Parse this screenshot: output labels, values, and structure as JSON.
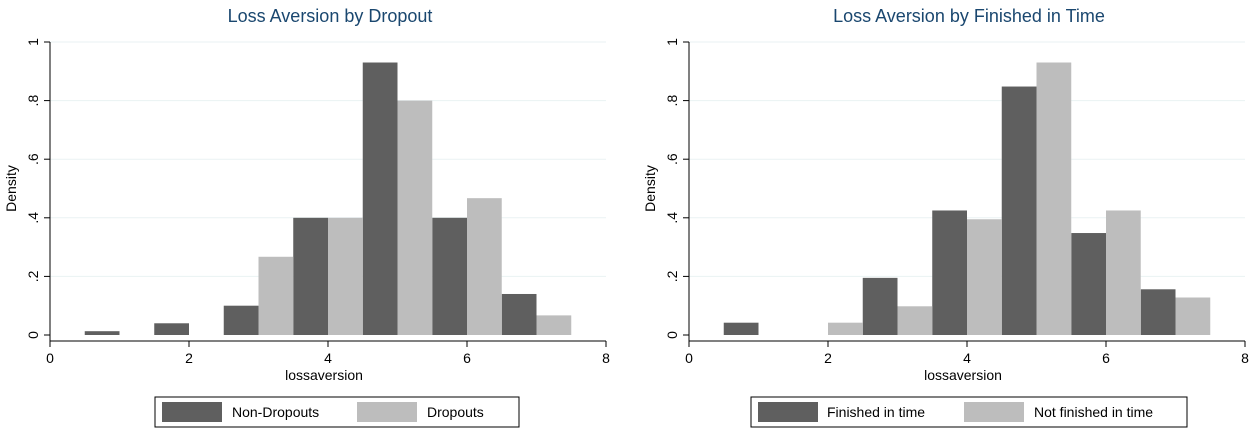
{
  "chart_data": [
    {
      "type": "bar",
      "title": "Loss Aversion by Dropout",
      "xlabel": "lossaversion",
      "ylabel": "Density",
      "xlim": [
        0,
        8
      ],
      "ylim": [
        0,
        1
      ],
      "xticks": [
        0,
        2,
        4,
        6,
        8
      ],
      "yticks": [
        0,
        0.2,
        0.4,
        0.6,
        0.8,
        1
      ],
      "ytick_labels": [
        "0",
        ".2",
        ".4",
        ".6",
        ".8",
        "1"
      ],
      "bar_width": 0.5,
      "grid": true,
      "legend_position": "bottom",
      "series": [
        {
          "name": "Non-Dropouts",
          "color": "#5f5f5f",
          "x": [
            0.75,
            1.75,
            2.75,
            3.75,
            4.75,
            5.75,
            6.75
          ],
          "values": [
            0.013,
            0.04,
            0.1,
            0.4,
            0.93,
            0.4,
            0.14
          ]
        },
        {
          "name": "Dropouts",
          "color": "#bdbdbd",
          "x": [
            3.25,
            4.25,
            5.25,
            6.25,
            7.25
          ],
          "values": [
            0.267,
            0.4,
            0.8,
            0.467,
            0.067
          ]
        }
      ]
    },
    {
      "type": "bar",
      "title": "Loss Aversion by Finished in Time",
      "xlabel": "lossaversion",
      "ylabel": "Density",
      "xlim": [
        0,
        8
      ],
      "ylim": [
        0,
        1
      ],
      "xticks": [
        0,
        2,
        4,
        6,
        8
      ],
      "yticks": [
        0,
        0.2,
        0.4,
        0.6,
        0.8,
        1
      ],
      "ytick_labels": [
        "0",
        ".2",
        ".4",
        ".6",
        ".8",
        "1"
      ],
      "bar_width": 0.5,
      "grid": true,
      "legend_position": "bottom",
      "series": [
        {
          "name": "Finished in time",
          "color": "#5f5f5f",
          "x": [
            0.75,
            2.75,
            3.75,
            4.75,
            5.75,
            6.75
          ],
          "values": [
            0.042,
            0.195,
            0.425,
            0.848,
            0.348,
            0.156
          ]
        },
        {
          "name": "Not finished in time",
          "color": "#bdbdbd",
          "x": [
            2.25,
            3.25,
            4.25,
            5.25,
            6.25,
            7.25
          ],
          "values": [
            0.042,
            0.098,
            0.395,
            0.93,
            0.425,
            0.128
          ]
        }
      ]
    }
  ]
}
